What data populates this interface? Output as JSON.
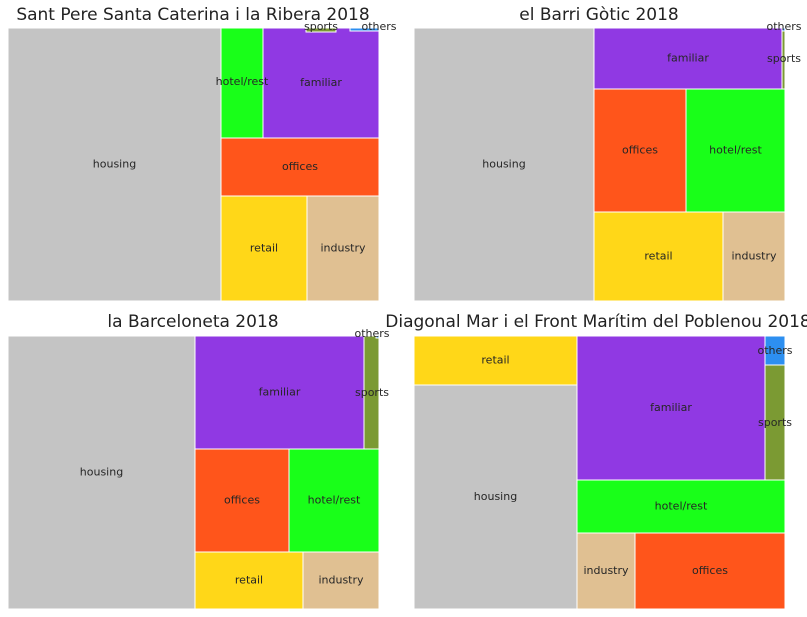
{
  "chart_data": [
    {
      "type": "treemap",
      "title": "Sant Pere Santa Caterina i la Ribera 2018",
      "segments": [
        {
          "label": "housing",
          "value": 57.0,
          "color": "#c4c4c4"
        },
        {
          "label": "retail",
          "value": 12.3,
          "color": "#ffd718"
        },
        {
          "label": "industry",
          "value": 10.2,
          "color": "#e0c092"
        },
        {
          "label": "offices",
          "value": 9.3,
          "color": "#ff551b"
        },
        {
          "label": "familiar",
          "value": 7.7,
          "color": "#9039e3"
        },
        {
          "label": "hotel/rest",
          "value": 2.9,
          "color": "#19ff19"
        },
        {
          "label": "sports",
          "value": 0.1,
          "color": "#7b9a33"
        },
        {
          "label": "others",
          "value": 0.05,
          "color": "#2d8ff0"
        }
      ]
    },
    {
      "type": "treemap",
      "title": "el Barri Gòtic 2018",
      "segments": [
        {
          "label": "housing",
          "value": 48.5,
          "color": "#c4c4c4"
        },
        {
          "label": "retail",
          "value": 17.3,
          "color": "#ffd718"
        },
        {
          "label": "familiar",
          "value": 10.5,
          "color": "#9039e3"
        },
        {
          "label": "hotel/rest",
          "value": 9.4,
          "color": "#19ff19"
        },
        {
          "label": "offices",
          "value": 8.0,
          "color": "#ff551b"
        },
        {
          "label": "industry",
          "value": 5.6,
          "color": "#e0c092"
        },
        {
          "label": "sports",
          "value": 0.3,
          "color": "#7b9a33"
        },
        {
          "label": "others",
          "value": 0.05,
          "color": "#2d8ff0"
        }
      ]
    },
    {
      "type": "treemap",
      "title": "la Barceloneta 2018",
      "segments": [
        {
          "label": "housing",
          "value": 50.3,
          "color": "#c4c4c4"
        },
        {
          "label": "familiar",
          "value": 17.3,
          "color": "#9039e3"
        },
        {
          "label": "offices",
          "value": 8.5,
          "color": "#ff551b"
        },
        {
          "label": "hotel/rest",
          "value": 8.2,
          "color": "#19ff19"
        },
        {
          "label": "retail",
          "value": 8.2,
          "color": "#ffd718"
        },
        {
          "label": "industry",
          "value": 5.7,
          "color": "#e0c092"
        },
        {
          "label": "sports",
          "value": 1.7,
          "color": "#7b9a33"
        },
        {
          "label": "others",
          "value": 0.05,
          "color": "#2d8ff0"
        }
      ]
    },
    {
      "type": "treemap",
      "title": "Diagonal Mar i el Front Marítim del Poblenou 2018",
      "segments": [
        {
          "label": "housing",
          "value": 39.2,
          "color": "#c4c4c4"
        },
        {
          "label": "familiar",
          "value": 27.8,
          "color": "#9039e3"
        },
        {
          "label": "offices",
          "value": 10.1,
          "color": "#ff551b"
        },
        {
          "label": "retail",
          "value": 8.0,
          "color": "#ffd718"
        },
        {
          "label": "hotel/rest",
          "value": 7.6,
          "color": "#19ff19"
        },
        {
          "label": "sports",
          "value": 3.5,
          "color": "#7b9a33"
        },
        {
          "label": "industry",
          "value": 3.2,
          "color": "#e0c092"
        },
        {
          "label": "others",
          "value": 0.9,
          "color": "#2d8ff0"
        }
      ]
    }
  ]
}
